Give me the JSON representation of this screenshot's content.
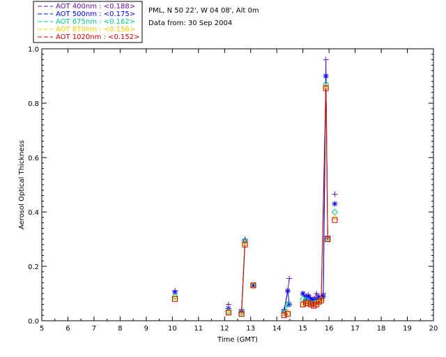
{
  "header": {
    "station": "PML, N 50 22', W 04 08', Alt 0m",
    "date": "Data from: 30 Sep 2004"
  },
  "chart_data": {
    "type": "scatter",
    "title": "",
    "xlabel": "Time (GMT)",
    "ylabel": "Aerosol Optical Thickness",
    "xlim": [
      5,
      20
    ],
    "ylim": [
      0,
      1.0
    ],
    "xticks": [
      "5",
      "6",
      "7",
      "8",
      "9",
      "10",
      "11",
      "12",
      "13",
      "14",
      "15",
      "16",
      "17",
      "18",
      "19",
      "20"
    ],
    "yticks": [
      "0.0",
      "0.2",
      "0.4",
      "0.6",
      "0.8",
      "1.0"
    ],
    "legend_position": "top-left outside",
    "series": [
      {
        "name": "AOT  400nm : <0.188>",
        "color": "#6a0dad",
        "marker": "plus",
        "x": [
          10.1,
          12.15,
          12.65,
          12.78,
          13.1,
          14.28,
          14.42,
          14.48,
          15.0,
          15.12,
          15.2,
          15.3,
          15.42,
          15.52,
          15.62,
          15.7,
          15.78,
          15.88,
          15.95,
          16.22
        ],
        "y": [
          0.11,
          0.06,
          0.04,
          0.3,
          0.13,
          0.04,
          0.11,
          0.155,
          0.1,
          0.09,
          0.095,
          0.085,
          0.08,
          0.1,
          0.09,
          0.09,
          0.1,
          0.96,
          0.31,
          0.465
        ]
      },
      {
        "name": "AOT  500nm : <0.175>",
        "color": "#0000ff",
        "marker": "asterisk",
        "x": [
          10.1,
          12.15,
          12.65,
          12.78,
          13.1,
          14.28,
          14.42,
          14.48,
          15.0,
          15.12,
          15.2,
          15.3,
          15.42,
          15.52,
          15.62,
          15.7,
          15.78,
          15.88,
          15.95,
          16.22
        ],
        "y": [
          0.105,
          0.045,
          0.035,
          0.29,
          0.13,
          0.035,
          0.11,
          0.06,
          0.1,
          0.08,
          0.09,
          0.08,
          0.075,
          0.08,
          0.085,
          0.085,
          0.09,
          0.9,
          0.305,
          0.43
        ]
      },
      {
        "name": "AOT  675nm : <0.162>",
        "color": "#00cc88",
        "marker": "diamond",
        "x": [
          10.1,
          12.15,
          12.65,
          12.78,
          13.1,
          14.28,
          14.42,
          15.0,
          15.12,
          15.2,
          15.3,
          15.42,
          15.52,
          15.62,
          15.7,
          15.88,
          15.95,
          16.22
        ],
        "y": [
          0.09,
          0.035,
          0.03,
          0.295,
          0.13,
          0.03,
          0.06,
          0.08,
          0.075,
          0.07,
          0.065,
          0.065,
          0.07,
          0.075,
          0.08,
          0.87,
          0.3,
          0.4
        ]
      },
      {
        "name": "AOT  870nm : <0.156>",
        "color": "#ffcc00",
        "marker": "triangle",
        "x": [
          10.1,
          12.15,
          12.65,
          12.78,
          13.1,
          14.28,
          14.42,
          15.0,
          15.12,
          15.2,
          15.3,
          15.42,
          15.52,
          15.62,
          15.7,
          15.88,
          15.95,
          16.22
        ],
        "y": [
          0.085,
          0.03,
          0.025,
          0.285,
          0.13,
          0.025,
          0.03,
          0.06,
          0.065,
          0.065,
          0.06,
          0.06,
          0.065,
          0.07,
          0.08,
          0.86,
          0.3,
          0.38
        ]
      },
      {
        "name": "AOT 1020nm : <0.152>",
        "color": "#cc0000",
        "marker": "square",
        "x": [
          10.1,
          12.15,
          12.65,
          12.78,
          13.1,
          14.28,
          14.42,
          15.0,
          15.12,
          15.2,
          15.3,
          15.42,
          15.52,
          15.62,
          15.7,
          15.88,
          15.95,
          16.22
        ],
        "y": [
          0.08,
          0.03,
          0.025,
          0.28,
          0.13,
          0.02,
          0.025,
          0.06,
          0.065,
          0.065,
          0.06,
          0.055,
          0.06,
          0.07,
          0.075,
          0.855,
          0.3,
          0.37
        ]
      }
    ]
  }
}
